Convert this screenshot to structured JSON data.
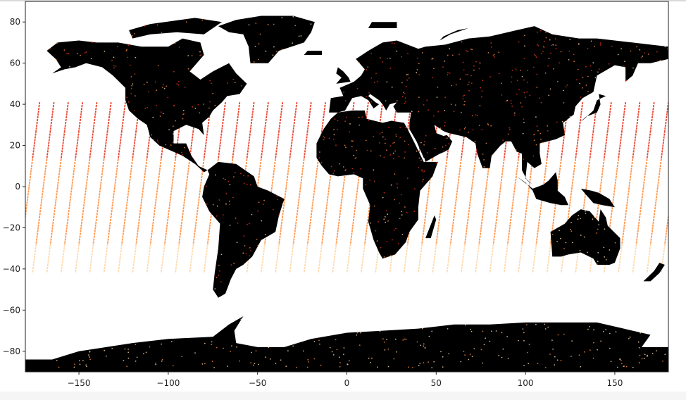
{
  "chart_data": {
    "type": "scatter",
    "title": "",
    "xlabel": "",
    "ylabel": "",
    "xlim": [
      -180,
      180
    ],
    "ylim": [
      -90,
      90
    ],
    "x_ticks": [
      -150,
      -100,
      -50,
      0,
      50,
      100,
      150
    ],
    "y_ticks": [
      80,
      60,
      40,
      20,
      0,
      -20,
      -40,
      -60,
      -80
    ],
    "x_tick_labels": [
      "−150",
      "−100",
      "−50",
      "0",
      "50",
      "100",
      "150"
    ],
    "y_tick_labels": [
      "80",
      "60",
      "40",
      "20",
      "0",
      "−20",
      "−40",
      "−60",
      "−80"
    ],
    "grid": false,
    "legend": "none",
    "background_layer": "world landmass (black fill)",
    "series": [
      {
        "marker_colors": [
          "#e8341c",
          "#ff8c3a",
          "#ffd7a8"
        ],
        "swath_lat_range": [
          -42,
          41
        ],
        "swath_longitude_spacing": 8,
        "description_of_marks": "diagonal satellite ground-track swaths spanning ~41N to ~42S, plus dense dotted coverage over land and Antarctica"
      }
    ],
    "land_color": "#000000",
    "ocean_color": "#ffffff"
  }
}
